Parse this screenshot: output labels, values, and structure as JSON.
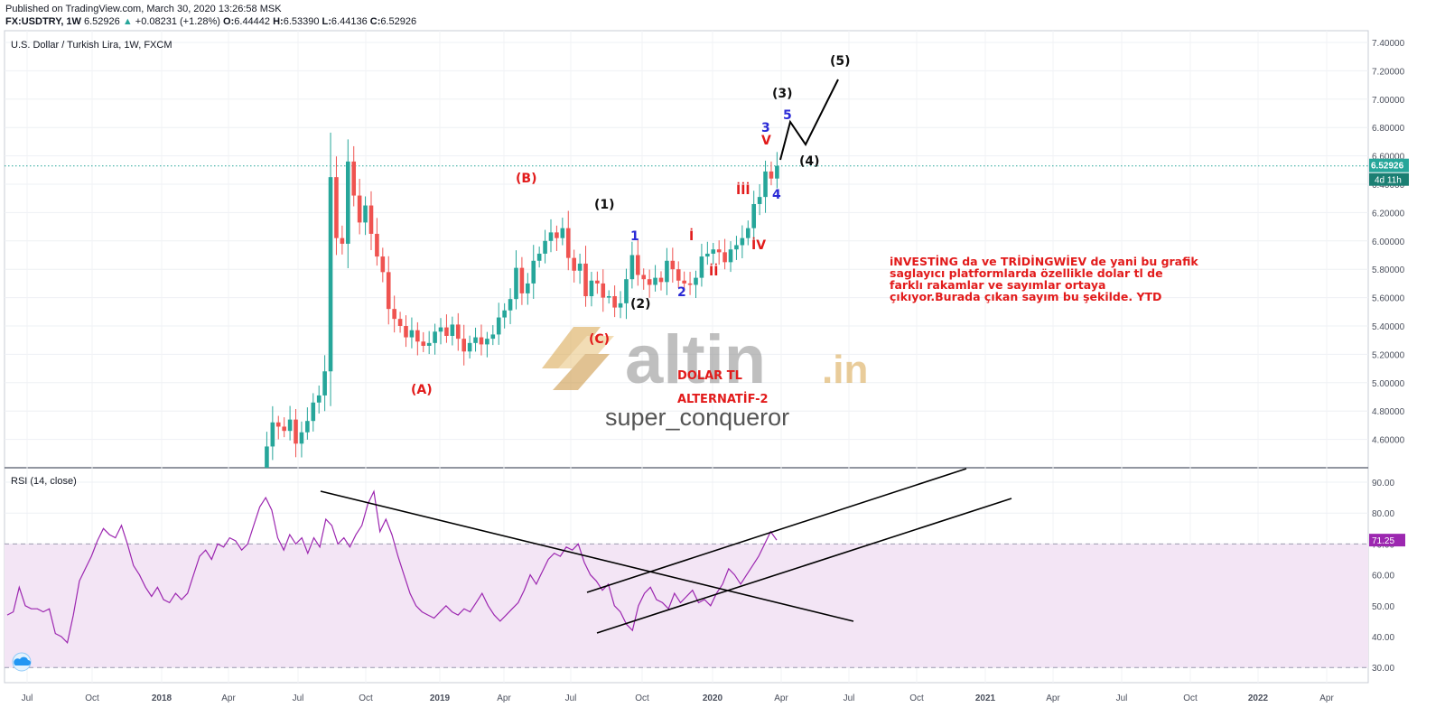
{
  "header": {
    "published": "Published on TradingView.com, March 30, 2020 13:26:58 MSK",
    "symbol": "FX:USDTRY, 1W",
    "last": "6.52926",
    "change_icon": "triangle-up-icon",
    "change": "+0.08231 (+1.28%)",
    "ohlc": [
      {
        "label": "O:",
        "value": "6.44442"
      },
      {
        "label": "H:",
        "value": "6.53390"
      },
      {
        "label": "L:",
        "value": "6.44136"
      },
      {
        "label": "C:",
        "value": "6.52926"
      }
    ]
  },
  "price_pane": {
    "legend": "U.S. Dollar / Turkish Lira, 1W, FXCM",
    "price_tag": "6.52926",
    "countdown_tag": "4d 11h"
  },
  "rsi_pane": {
    "legend": "RSI (14, close)",
    "value_tag": "71.25"
  },
  "annotations": {
    "wave_labels": [
      "(A)",
      "(B)",
      "(C)",
      "(1)",
      "(2)",
      "(3)",
      "(4)",
      "(5)",
      "1",
      "2",
      "3",
      "4",
      "5",
      "İ",
      "İİ",
      "İİİ",
      "İV",
      "V"
    ],
    "title_1": "DOLAR TL",
    "title_2": "ALTERNATİF-2",
    "author": "super_conqueror",
    "watermark_logo": "altin.in",
    "note": "iNVESTİNG da ve TRİDİNGWİEV de yani bu grafik saglayıcı platformlarda özellikle dolar tl de farklı rakamlar ve sayımlar ortaya çıkıyor.Burada çıkan sayım bu şekilde. YTD"
  },
  "colors": {
    "bull": "#26a69a",
    "bear": "#ef5350",
    "rsi_line": "#9c27b0",
    "rsi_band": "#f3e5f5",
    "annotation_red": "#e21b1b",
    "annotation_blue": "#2a2ad6",
    "watermark_gold": "#d8a448",
    "watermark_gray": "#8c8c8c"
  },
  "chart_data": [
    {
      "type": "candlestick",
      "title": "U.S. Dollar / Turkish Lira, 1W, FXCM",
      "timeframe": "1W",
      "x_tick_labels": [
        "Jul",
        "Oct",
        "2018",
        "Apr",
        "Jul",
        "Oct",
        "2019",
        "Apr",
        "Jul",
        "Oct",
        "2020",
        "Apr",
        "Jul",
        "Oct",
        "2021",
        "Apr",
        "Jul",
        "Oct",
        "2022",
        "Apr"
      ],
      "y_tick_labels": [
        "7.40000",
        "7.20000",
        "7.00000",
        "6.80000",
        "6.60000",
        "6.40000",
        "6.20000",
        "6.00000",
        "5.80000",
        "5.60000",
        "5.40000",
        "5.20000",
        "5.00000",
        "4.80000",
        "4.60000"
      ],
      "ylim": [
        4.45,
        7.43
      ],
      "last_price": 6.52926,
      "series_close": [
        4.33,
        4.55,
        4.72,
        4.69,
        4.66,
        4.74,
        4.57,
        4.65,
        4.73,
        4.86,
        4.91,
        5.08,
        6.45,
        6.02,
        5.98,
        6.56,
        6.32,
        6.13,
        6.25,
        6.05,
        5.89,
        5.78,
        5.52,
        5.45,
        5.4,
        5.32,
        5.37,
        5.29,
        5.26,
        5.28,
        5.36,
        5.39,
        5.33,
        5.41,
        5.31,
        5.22,
        5.28,
        5.32,
        5.27,
        5.31,
        5.34,
        5.46,
        5.51,
        5.59,
        5.81,
        5.63,
        5.7,
        5.86,
        5.91,
        6.0,
        6.06,
        6.02,
        6.09,
        5.88,
        5.79,
        5.84,
        5.61,
        5.72,
        5.7,
        5.6,
        5.61,
        5.53,
        5.56,
        5.73,
        5.9,
        5.76,
        5.73,
        5.69,
        5.74,
        5.71,
        5.86,
        5.8,
        5.72,
        5.7,
        5.69,
        5.74,
        5.89,
        5.91,
        5.94,
        5.92,
        5.85,
        5.94,
        5.97,
        6.02,
        6.09,
        6.26,
        6.31,
        6.49,
        6.44,
        6.52926
      ],
      "wave_points": [
        {
          "label": "(A)",
          "date": "2018-11",
          "price": 5.12
        },
        {
          "label": "(B)",
          "date": "2019-05",
          "price": 6.25
        },
        {
          "label": "(C)",
          "date": "2019-08",
          "price": 5.44
        },
        {
          "label": "(1)",
          "date": "2019-09",
          "price": 5.95
        },
        {
          "label": "(2)",
          "date": "2019-10",
          "price": 5.64
        },
        {
          "label": "(3)",
          "date": "2020-03",
          "price": 6.53
        },
        {
          "label": "(4)",
          "date": "2020-05",
          "price": 6.6
        },
        {
          "label": "(5)",
          "date": "2020-06",
          "price": 7.14
        }
      ]
    },
    {
      "type": "line",
      "title": "RSI (14, close)",
      "y_tick_labels": [
        "90.00",
        "80.00",
        "70.00",
        "60.00",
        "50.00",
        "40.00",
        "30.00"
      ],
      "ylim": [
        25,
        93
      ],
      "band": [
        30,
        70
      ],
      "last_value": 71.25,
      "values": [
        47,
        48,
        56,
        50,
        49,
        49,
        48,
        49,
        41,
        40,
        38,
        47,
        58,
        62,
        66,
        71,
        75,
        73,
        72,
        76,
        70,
        63,
        60,
        56,
        53,
        56,
        52,
        51,
        54,
        52,
        54,
        60,
        66,
        68,
        65,
        70,
        69,
        72,
        71,
        68,
        70,
        76,
        82,
        85,
        81,
        72,
        68,
        73,
        70,
        72,
        67,
        72,
        69,
        78,
        76,
        70,
        72,
        69,
        73,
        76,
        83,
        87,
        74,
        78,
        73,
        66,
        60,
        54,
        50,
        48,
        47,
        46,
        48,
        50,
        48,
        47,
        49,
        48,
        51,
        54,
        50,
        47,
        45,
        47,
        49,
        51,
        55,
        60,
        57,
        61,
        65,
        67,
        66,
        69,
        68,
        70,
        64,
        60,
        58,
        55,
        57,
        50,
        48,
        44,
        42,
        50,
        54,
        56,
        52,
        51,
        49,
        54,
        51,
        53,
        55,
        51,
        52,
        50,
        54,
        57,
        62,
        60,
        57,
        60,
        63,
        66,
        70,
        74,
        71.25
      ]
    }
  ]
}
